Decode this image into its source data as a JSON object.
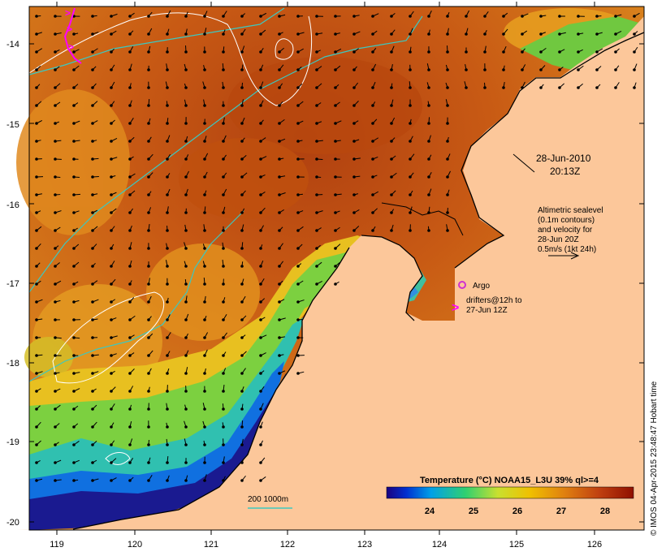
{
  "map": {
    "lat_ticks": [
      "-14",
      "-15",
      "-16",
      "-17",
      "-18",
      "-19",
      "-20"
    ],
    "lon_ticks": [
      "119",
      "120",
      "121",
      "122",
      "123",
      "124",
      "125",
      "126"
    ],
    "colors": {
      "land": "#fcc79a",
      "ocean_warm": "#d0701a",
      "ocean_hot": "#b84010",
      "contour": "#ffffff",
      "isobath": "#3cc8c0",
      "argo": "#d030d0",
      "drifter": "#ff00ff"
    }
  },
  "annotations": {
    "date": "28-Jun-2010",
    "time": "20:13Z",
    "altimetry": [
      "Altimetric sealevel",
      "(0.1m contours)",
      "and velocity for",
      "28-Jun 20Z",
      "0.5m/s (1kt 24h)"
    ],
    "argo_label": "Argo",
    "drifters": [
      "drifters@12h to",
      "27-Jun 12Z"
    ],
    "isobath": "200  1000m"
  },
  "colorbar": {
    "title": "Temperature (°C) NOAA15_L3U 39% ql>=4",
    "ticks": [
      "24",
      "25",
      "26",
      "27",
      "28"
    ],
    "stops": [
      "#1a0080",
      "#0030d0",
      "#00a0e8",
      "#30d070",
      "#c8e030",
      "#f0c000",
      "#e08010",
      "#c04010",
      "#901000"
    ]
  },
  "side_label": "© IMOS 04-Apr-2015 23:48:47 Hobart time"
}
